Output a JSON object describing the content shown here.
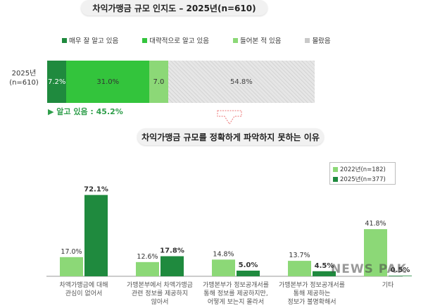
{
  "titles": {
    "top": "차익가맹금 규모 인지도 – 2025년(n=610)",
    "bottom": "차익가맹금 규모를 정확하게 파악하지 못하는 이유"
  },
  "legend_top": [
    {
      "label": "매우 잘 알고 있음",
      "color": "#1f8a3e"
    },
    {
      "label": "대략적으로 알고 있음",
      "color": "#33c43c"
    },
    {
      "label": "들어본 적 있음",
      "color": "#8cd877"
    },
    {
      "label": "몰랐음",
      "color": "#c9c9c9"
    }
  ],
  "stacked": {
    "row_label_line1": "2025년",
    "row_label_line2": "(n=610)",
    "segments": [
      {
        "label": "7.2%",
        "value": 7.2,
        "color": "#1f8a3e",
        "style": "dark"
      },
      {
        "label": "31.0%",
        "value": 31.0,
        "color": "#33c43c",
        "style": "normal"
      },
      {
        "label": "7.0",
        "value": 7.0,
        "color": "#8cd877",
        "style": "normal"
      },
      {
        "label": "54.8%",
        "value": 54.8,
        "color": "#e6e6e6",
        "style": "pattern"
      }
    ],
    "known_summary": "▶ 알고 있음 : 45.2%"
  },
  "chart_data": {
    "type": "bar",
    "title": "차익가맹금 규모를 정확하게 파악하지 못하는 이유",
    "categories": [
      [
        "차액가맹금에 대해",
        "관심이 없어서"
      ],
      [
        "가맹본부에서 차액가맹금",
        "관련 정보를 제공하지",
        "않아서"
      ],
      [
        "가맹본부가 정보공개서를",
        "통해 정보를 제공하지만,",
        "어떻게 보는지 몰라서"
      ],
      [
        "가맹본부가 정보공개서를",
        "통해 제공하는",
        "정보가 불명확해서"
      ],
      [
        "기타"
      ]
    ],
    "series": [
      {
        "name": "2022년(n=182)",
        "color": "#8cd877",
        "values": [
          17.0,
          12.6,
          14.8,
          13.7,
          41.8
        ],
        "labels": [
          "17.0%",
          "12.6%",
          "14.8%",
          "13.7%",
          "41.8%"
        ]
      },
      {
        "name": "2025년(n=377)",
        "color": "#1f8a3e",
        "values": [
          72.1,
          17.8,
          5.0,
          4.5,
          0.5
        ],
        "labels": [
          "72.1%",
          "17.8%",
          "5.0%",
          "4.5%",
          "0.5%"
        ]
      }
    ],
    "ylim": [
      0,
      80
    ],
    "legend": "top-right",
    "grid": false
  },
  "watermark": "NEWS PAK"
}
